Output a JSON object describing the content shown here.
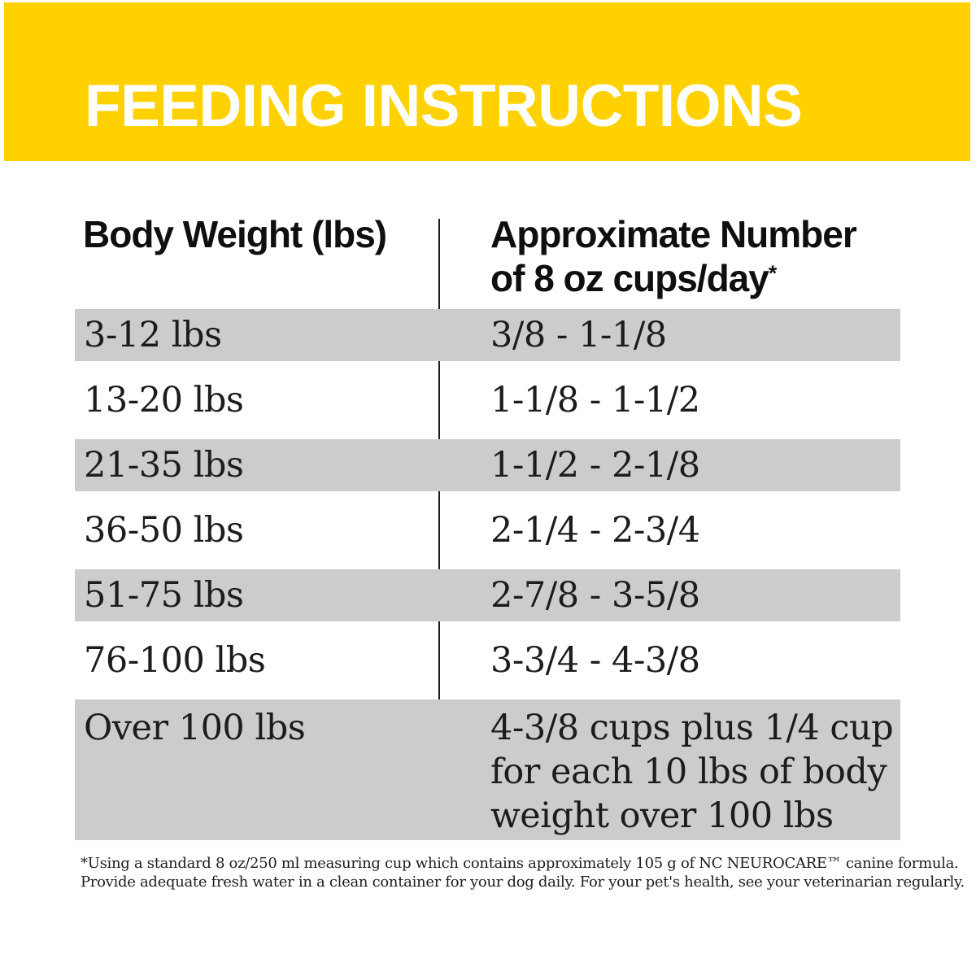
{
  "banner": {
    "title": "FEEDING INSTRUCTIONS"
  },
  "table": {
    "col1_header": "Body Weight (lbs)",
    "col2_header_line1": "Approximate Number",
    "col2_header_line2": "of 8 oz cups/day",
    "col2_header_footnote_marker": "*",
    "rows": [
      {
        "weight": "3-12 lbs",
        "cups": "3/8 - 1-1/8",
        "shaded": true
      },
      {
        "weight": "13-20 lbs",
        "cups": "1-1/8 - 1-1/2",
        "shaded": false
      },
      {
        "weight": "21-35 lbs",
        "cups": "1-1/2 - 2-1/8",
        "shaded": true
      },
      {
        "weight": "36-50 lbs",
        "cups": "2-1/4 - 2-3/4",
        "shaded": false
      },
      {
        "weight": "51-75 lbs",
        "cups": "2-7/8 - 3-5/8",
        "shaded": true
      },
      {
        "weight": "76-100 lbs",
        "cups": "3-3/4 - 4-3/8",
        "shaded": false
      },
      {
        "weight": "Over 100 lbs",
        "cups": "4-3/8 cups plus 1/4 cup for each 10 lbs of body weight over 100 lbs",
        "cups_lines": [
          "4-3/8 cups plus 1/4 cup",
          "for each 10 lbs of body",
          "weight over 100 lbs"
        ],
        "shaded": true
      }
    ]
  },
  "footnote": {
    "line1": "*Using a standard 8 oz/250 ml measuring cup which contains approximately 105 g of NC NEUROCARE™ canine formula.",
    "line2": "Provide adequate fresh water in a clean container for your dog daily. For your pet's health, see your veterinarian regularly."
  },
  "colors": {
    "banner_yellow": "#FFD100",
    "row_shaded_gray": "#CCCCCC",
    "banner_text": "#FFFFFF",
    "body_text": "#1C1C1C"
  }
}
